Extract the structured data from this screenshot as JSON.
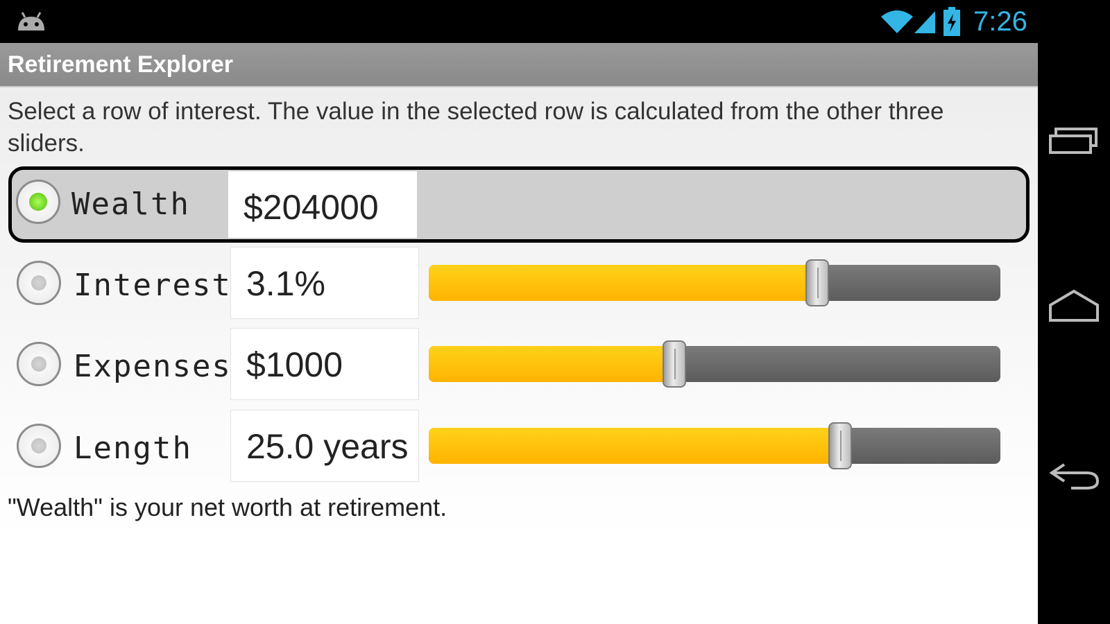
{
  "status_bar": {
    "time": "7:26",
    "clock_color": "#33b5e5"
  },
  "app": {
    "title": "Retirement Explorer"
  },
  "intro_text": "Select a row of interest. The value in the selected row is calculated from the other three sliders.",
  "rows": [
    {
      "label": "Wealth",
      "value": "$204000",
      "selected": true
    },
    {
      "label": "Interest",
      "value": "3.1%",
      "selected": false,
      "slider_fraction": 0.68
    },
    {
      "label": "Expenses",
      "value": "$1000",
      "selected": false,
      "slider_fraction": 0.43
    },
    {
      "label": "Length",
      "value": "25.0 years",
      "selected": false,
      "slider_fraction": 0.72
    }
  ],
  "footer_note": "\"Wealth\" is your net worth at retirement.",
  "colors": {
    "slider_fill": "#ffb300",
    "selected_radio": "#55bb11",
    "title_bar": "#8f8f8f"
  },
  "nav_icons": [
    "recent-apps-icon",
    "home-icon",
    "back-icon"
  ]
}
